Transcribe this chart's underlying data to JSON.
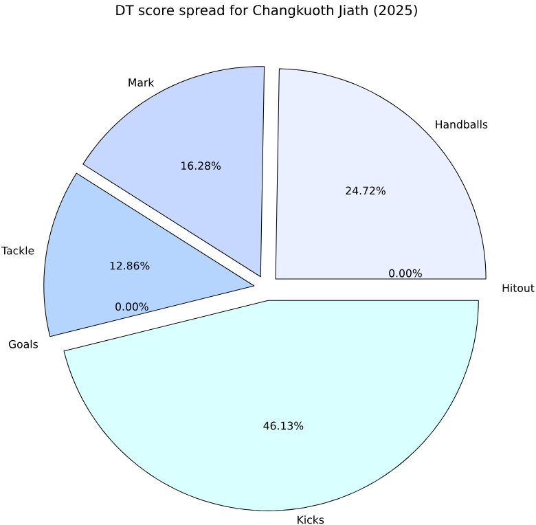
{
  "chart_data": {
    "type": "pie",
    "title": "DT score spread for Changkuoth Jiath (2025)",
    "categories": [
      "Handballs",
      "Mark",
      "Tackle",
      "Goals",
      "Kicks",
      "Hitout"
    ],
    "values": [
      24.72,
      16.28,
      12.86,
      0.0,
      46.13,
      0.0
    ],
    "colors": [
      "#eaf0ff",
      "#c6d8ff",
      "#b5d5ff",
      "#c8e0ff",
      "#d9ffff",
      "#e0e8ff"
    ],
    "value_labels": [
      "24.72%",
      "16.28%",
      "12.86%",
      "0.00%",
      "46.13%",
      "0.00%"
    ]
  }
}
